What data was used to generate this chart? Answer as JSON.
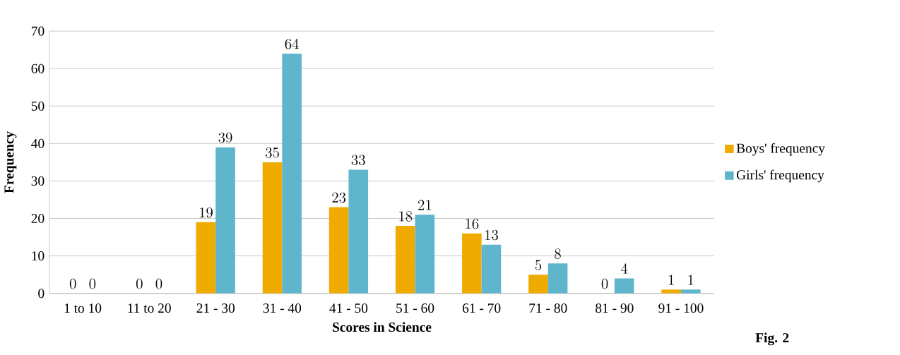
{
  "chart_data": {
    "type": "bar",
    "xlabel": "Scores in Science",
    "ylabel": "Frequency",
    "categories": [
      "1 to 10",
      "11 to 20",
      "21 - 30",
      "31 - 40",
      "41 - 50",
      "51 - 60",
      "61 - 70",
      "71 - 80",
      "81 - 90",
      "91 - 100"
    ],
    "series": [
      {
        "name": "Boys' frequency",
        "color": "#f0ab00",
        "values": [
          0,
          0,
          19,
          35,
          23,
          18,
          16,
          5,
          0,
          1
        ]
      },
      {
        "name": "Girls' frequency",
        "color": "#5fb5cc",
        "values": [
          0,
          0,
          39,
          64,
          33,
          21,
          13,
          8,
          4,
          1
        ]
      }
    ],
    "ylim": [
      0,
      70
    ],
    "yticks": [
      0,
      10,
      20,
      30,
      40,
      50,
      60,
      70
    ],
    "grid": "y",
    "legend": "right",
    "data_labels": true,
    "annotations": [
      "Fig. 2"
    ]
  }
}
